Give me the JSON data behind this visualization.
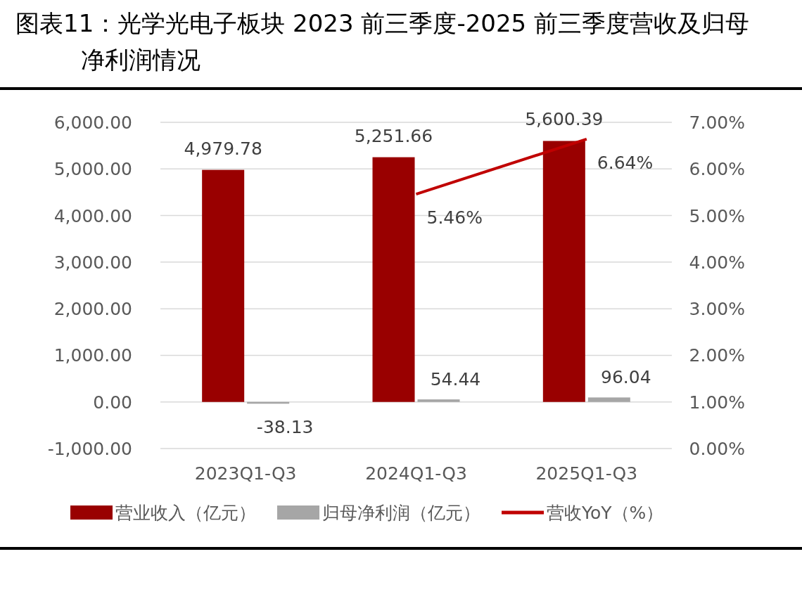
{
  "chart_data": {
    "type": "bar",
    "title": "图表11：光学光电子板块 2023 前三季度-2025 前三季度营收及归母净利润情况",
    "categories": [
      "2023Q1-Q3",
      "2024Q1-Q3",
      "2025Q1-Q3"
    ],
    "series": [
      {
        "name": "营业收入（亿元）",
        "color": "#990000",
        "values": [
          4979.78,
          5251.66,
          5600.39
        ],
        "value_labels": [
          "4,979.78",
          "5,251.66",
          "5,600.39"
        ]
      },
      {
        "name": "归母净利润（亿元）",
        "color": "#a6a6a6",
        "values": [
          -38.13,
          54.44,
          96.04
        ],
        "value_labels": [
          "-38.13",
          "54.44",
          "96.04"
        ]
      },
      {
        "name": "营收YoY（%）",
        "type": "line",
        "axis": "y2",
        "color": "#c00000",
        "values": [
          null,
          5.46,
          6.64
        ],
        "value_labels": [
          null,
          "5.46%",
          "6.64%"
        ]
      }
    ],
    "ylim": [
      -1000,
      6000
    ],
    "yticks": [
      {
        "value": -1000,
        "label": "-1,000.00"
      },
      {
        "value": 0,
        "label": "0.00"
      },
      {
        "value": 1000,
        "label": "1,000.00"
      },
      {
        "value": 2000,
        "label": "2,000.00"
      },
      {
        "value": 3000,
        "label": "3,000.00"
      },
      {
        "value": 4000,
        "label": "4,000.00"
      },
      {
        "value": 5000,
        "label": "5,000.00"
      },
      {
        "value": 6000,
        "label": "6,000.00"
      }
    ],
    "y2lim": [
      0,
      7
    ],
    "y2ticks": [
      {
        "value": 0,
        "label": "0.00%"
      },
      {
        "value": 1,
        "label": "1.00%"
      },
      {
        "value": 2,
        "label": "2.00%"
      },
      {
        "value": 3,
        "label": "3.00%"
      },
      {
        "value": 4,
        "label": "4.00%"
      },
      {
        "value": 5,
        "label": "5.00%"
      },
      {
        "value": 6,
        "label": "6.00%"
      },
      {
        "value": 7,
        "label": "7.00%"
      }
    ],
    "grid": "y",
    "legend": "bottom"
  }
}
